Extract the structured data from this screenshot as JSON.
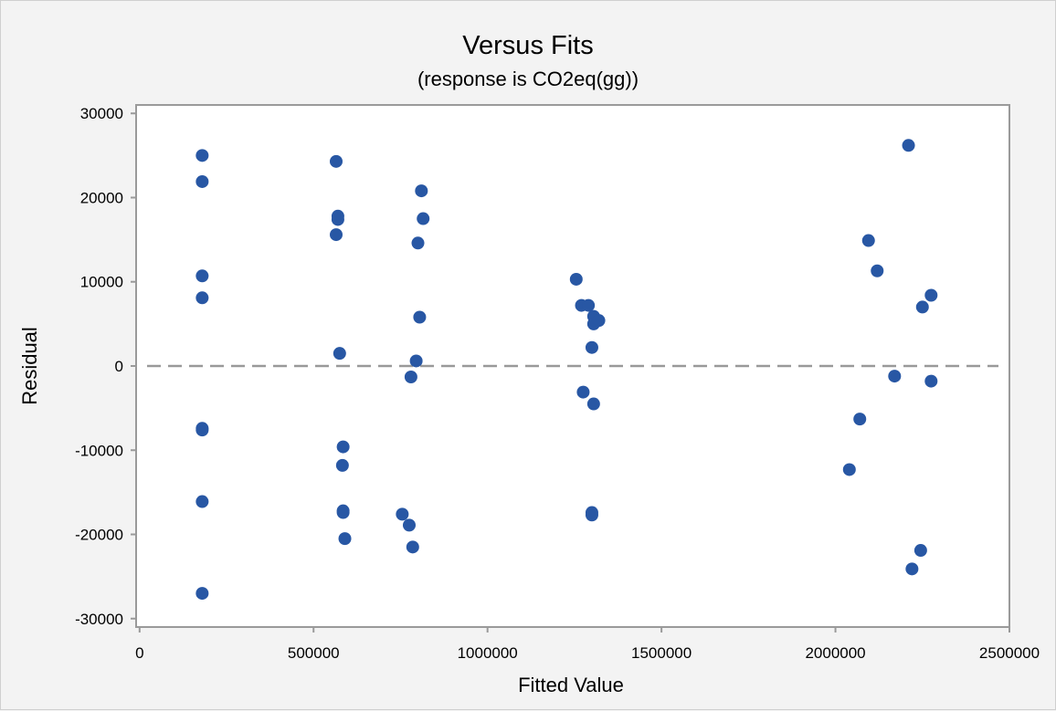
{
  "chart_data": {
    "type": "scatter",
    "title": "Versus Fits",
    "subtitle": "(response is CO2eq(gg))",
    "xlabel": "Fitted Value",
    "ylabel": "Residual",
    "xlim": [
      -10000,
      2500000
    ],
    "ylim": [
      -31000,
      31000
    ],
    "xticks": [
      0,
      500000,
      1000000,
      1500000,
      2000000,
      2500000
    ],
    "yticks": [
      -30000,
      -20000,
      -10000,
      0,
      10000,
      20000,
      30000
    ],
    "xtick_labels": [
      "0",
      "500000",
      "1000000",
      "1500000",
      "2000000",
      "2500000"
    ],
    "ytick_labels": [
      "-30000",
      "-20000",
      "-10000",
      "0",
      "10000",
      "20000",
      "30000"
    ],
    "reference_line": 0,
    "grid": false,
    "colors": {
      "points": "#2857a4",
      "reference_line": "#999999",
      "frame": "#9a9a9a",
      "plot_bg": "#ffffff",
      "outer_bg": "#f3f3f3"
    },
    "series": [
      {
        "x": [
          180000,
          180000,
          180000,
          180000,
          180000,
          180000,
          180000,
          180000,
          565000,
          570000,
          570000,
          565000,
          575000,
          585000,
          583000,
          585000,
          585000,
          590000,
          810000,
          815000,
          800000,
          805000,
          795000,
          780000,
          755000,
          775000,
          785000,
          1255000,
          1270000,
          1290000,
          1305000,
          1305000,
          1320000,
          1300000,
          1275000,
          1305000,
          1300000,
          1300000,
          2210000,
          2095000,
          2120000,
          2275000,
          2250000,
          2170000,
          2275000,
          2070000,
          2040000,
          2245000,
          2220000
        ],
        "y": [
          25000,
          21900,
          10700,
          8100,
          -7400,
          -7600,
          -16100,
          -27000,
          24300,
          17800,
          17400,
          15600,
          1500,
          -9600,
          -11800,
          -17200,
          -17400,
          -20500,
          20800,
          17500,
          14600,
          5800,
          600,
          -1300,
          -17600,
          -18900,
          -21500,
          10300,
          7200,
          7200,
          5900,
          5000,
          5400,
          2200,
          -3100,
          -4500,
          -17400,
          -17700,
          26200,
          14900,
          11300,
          8400,
          7000,
          -1200,
          -1800,
          -6300,
          -12300,
          -21900,
          -24100
        ]
      }
    ]
  }
}
